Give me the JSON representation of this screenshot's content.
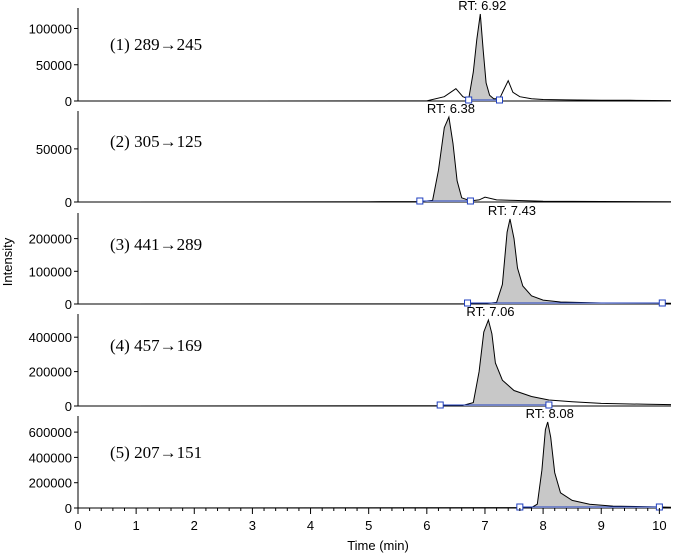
{
  "chart_data": {
    "type": "line",
    "x_label": "Time (min)",
    "y_label": "Intensity",
    "x_range": [
      0,
      10.2
    ],
    "x_ticks": [
      0,
      1,
      2,
      3,
      4,
      5,
      6,
      7,
      8,
      9,
      10
    ],
    "colors": {
      "fill": "#c8c8c8",
      "line": "#000000",
      "baseline": "#1f3fbf",
      "marker": "#1f3fbf"
    },
    "panels": [
      {
        "label": "(1) 289→245",
        "rt_label": "RT: 6.92",
        "ylim": [
          0,
          120000
        ],
        "y_ticks": [
          0,
          50000,
          100000
        ],
        "peak_window": [
          6.72,
          7.25
        ],
        "points": [
          [
            0,
            0
          ],
          [
            6.0,
            200
          ],
          [
            6.3,
            6000
          ],
          [
            6.5,
            17000
          ],
          [
            6.62,
            6000
          ],
          [
            6.72,
            3000
          ],
          [
            6.8,
            40000
          ],
          [
            6.86,
            85000
          ],
          [
            6.92,
            120000
          ],
          [
            6.97,
            70000
          ],
          [
            7.02,
            25000
          ],
          [
            7.08,
            8000
          ],
          [
            7.15,
            3000
          ],
          [
            7.25,
            3000
          ],
          [
            7.32,
            15000
          ],
          [
            7.4,
            28000
          ],
          [
            7.48,
            12000
          ],
          [
            7.6,
            6000
          ],
          [
            7.8,
            3000
          ],
          [
            8.0,
            2000
          ],
          [
            8.4,
            1500
          ],
          [
            9.0,
            1000
          ],
          [
            9.5,
            1000
          ],
          [
            10.2,
            500
          ]
        ]
      },
      {
        "label": "(2) 305→125",
        "rt_label": "RT: 6.38",
        "ylim": [
          0,
          80000
        ],
        "y_ticks": [
          0,
          50000
        ],
        "peak_window": [
          5.88,
          6.75
        ],
        "points": [
          [
            0,
            0
          ],
          [
            5.0,
            300
          ],
          [
            5.9,
            400
          ],
          [
            6.1,
            1500
          ],
          [
            6.2,
            30000
          ],
          [
            6.3,
            70000
          ],
          [
            6.38,
            80000
          ],
          [
            6.45,
            55000
          ],
          [
            6.52,
            20000
          ],
          [
            6.6,
            4000
          ],
          [
            6.75,
            1000
          ],
          [
            6.9,
            2000
          ],
          [
            7.0,
            4500
          ],
          [
            7.2,
            2000
          ],
          [
            7.5,
            1500
          ],
          [
            8.0,
            800
          ],
          [
            9.0,
            500
          ],
          [
            10.2,
            300
          ]
        ]
      },
      {
        "label": "(3) 441→289",
        "rt_label": "RT: 7.43",
        "ylim": [
          0,
          260000
        ],
        "y_ticks": [
          0,
          100000,
          200000
        ],
        "peak_window": [
          6.7,
          10.05
        ],
        "points": [
          [
            0,
            0
          ],
          [
            7.0,
            500
          ],
          [
            7.2,
            5000
          ],
          [
            7.3,
            60000
          ],
          [
            7.38,
            220000
          ],
          [
            7.43,
            260000
          ],
          [
            7.5,
            200000
          ],
          [
            7.56,
            110000
          ],
          [
            7.65,
            55000
          ],
          [
            7.8,
            25000
          ],
          [
            8.0,
            12000
          ],
          [
            8.3,
            6000
          ],
          [
            9.0,
            3000
          ],
          [
            10.2,
            2000
          ]
        ]
      },
      {
        "label": "(4) 457→169",
        "rt_label": "RT: 7.06",
        "ylim": [
          0,
          500000
        ],
        "y_ticks": [
          0,
          200000,
          400000
        ],
        "peak_window": [
          6.23,
          8.1
        ],
        "points": [
          [
            0,
            0
          ],
          [
            6.6,
            2000
          ],
          [
            6.8,
            20000
          ],
          [
            6.9,
            200000
          ],
          [
            6.98,
            430000
          ],
          [
            7.06,
            500000
          ],
          [
            7.12,
            420000
          ],
          [
            7.18,
            250000
          ],
          [
            7.3,
            150000
          ],
          [
            7.5,
            90000
          ],
          [
            7.8,
            55000
          ],
          [
            8.1,
            35000
          ],
          [
            8.5,
            25000
          ],
          [
            9.0,
            15000
          ],
          [
            9.8,
            10000
          ],
          [
            10.2,
            8000
          ]
        ]
      },
      {
        "label": "(5) 207→151",
        "rt_label": "RT: 8.08",
        "ylim": [
          0,
          680000
        ],
        "y_ticks": [
          0,
          200000,
          400000,
          600000
        ],
        "peak_window": [
          7.6,
          10.0
        ],
        "points": [
          [
            0,
            0
          ],
          [
            7.8,
            3000
          ],
          [
            7.9,
            30000
          ],
          [
            7.98,
            300000
          ],
          [
            8.04,
            620000
          ],
          [
            8.08,
            680000
          ],
          [
            8.13,
            560000
          ],
          [
            8.2,
            280000
          ],
          [
            8.3,
            120000
          ],
          [
            8.5,
            60000
          ],
          [
            8.8,
            30000
          ],
          [
            9.2,
            15000
          ],
          [
            10.0,
            8000
          ],
          [
            10.2,
            6000
          ]
        ]
      }
    ]
  }
}
